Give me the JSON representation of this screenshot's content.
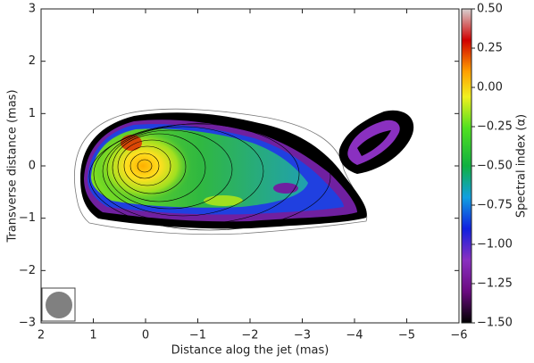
{
  "chart_data": {
    "type": "image",
    "xlabel": "Distance alog the jet (mas)",
    "ylabel": "Transverse distance (mas)",
    "xlim": [
      2,
      -6
    ],
    "ylim": [
      -3,
      3
    ],
    "xticks": [
      2,
      1,
      0,
      {
        "value": -1,
        "label": "−1"
      },
      {
        "value": -2,
        "label": "−2"
      },
      {
        "value": -3,
        "label": "−3"
      },
      {
        "value": -4,
        "label": "−4"
      },
      {
        "value": -5,
        "label": "−5"
      },
      {
        "value": -6,
        "label": "−6"
      }
    ],
    "yticks": [
      {
        "value": -3,
        "label": "−3"
      },
      {
        "value": -2,
        "label": "−2"
      },
      {
        "value": -1,
        "label": "−1"
      },
      0,
      1,
      2,
      3
    ],
    "colorbar": {
      "label": "Spectral index (α)",
      "lim": [
        -1.5,
        0.5
      ],
      "ticks": [
        {
          "value": 0.5,
          "label": "0.50"
        },
        {
          "value": 0.25,
          "label": "0.25"
        },
        {
          "value": 0,
          "label": "0.00"
        },
        {
          "value": -0.25,
          "label": "−0.25"
        },
        {
          "value": -0.5,
          "label": "−0.50"
        },
        {
          "value": -0.75,
          "label": "−0.75"
        },
        {
          "value": -1,
          "label": "−1.00"
        },
        {
          "value": -1.25,
          "label": "−1.25"
        },
        {
          "value": -1.5,
          "label": "−1.50"
        }
      ]
    }
  }
}
